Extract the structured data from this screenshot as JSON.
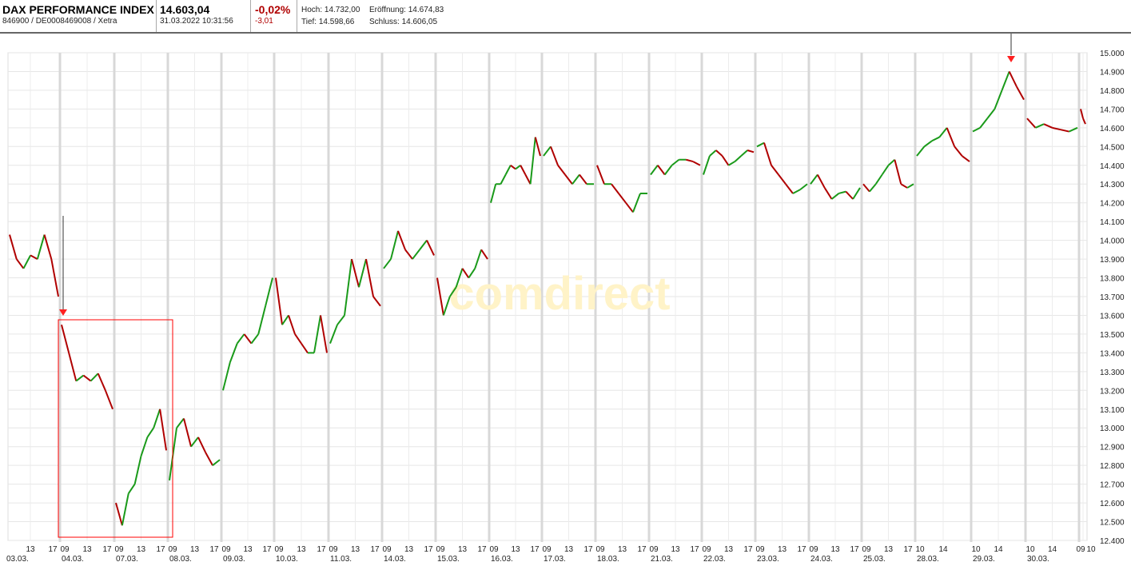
{
  "header": {
    "title": "DAX PERFORMANCE INDEX",
    "ids": "846900 / DE0008469008 / Xetra",
    "price": "14.603,04",
    "datetime": "31.03.2022 10:31:56",
    "change_pct": "-0,02%",
    "change_abs": "-3,01",
    "high": "Hoch: 14.732,00",
    "open": "Eröffnung: 14.674,83",
    "low": "Tief: 14.598,66",
    "close": "Schluss: 14.606,05"
  },
  "colors": {
    "up": "#1a9a1a",
    "down": "#b00000",
    "change": "#b00000",
    "annotation": "#ff0000"
  },
  "watermark": "comdirect",
  "chart_data": {
    "type": "line",
    "style": "intraday candlestick-like line (green up / red down)",
    "ylim": [
      12400,
      15000
    ],
    "y_ticks": [
      "12.400",
      "12.500",
      "12.600",
      "12.700",
      "12.800",
      "12.900",
      "13.000",
      "13.100",
      "13.200",
      "13.300",
      "13.400",
      "13.500",
      "13.600",
      "13.700",
      "13.800",
      "13.900",
      "14.000",
      "14.100",
      "14.200",
      "14.300",
      "14.400",
      "14.500",
      "14.600",
      "14.700",
      "14.800",
      "14.900",
      "15.000"
    ],
    "grid": true,
    "days": [
      {
        "date": "03.03.",
        "ticks": [
          "13",
          "17"
        ],
        "values": [
          14030,
          13900,
          13850,
          13920,
          13900,
          14030,
          13900,
          13700
        ]
      },
      {
        "date": "04.03.",
        "ticks": [
          "09",
          "13",
          "17"
        ],
        "values": [
          13550,
          13400,
          13250,
          13280,
          13250,
          13290,
          13200,
          13100
        ]
      },
      {
        "date": "07.03.",
        "ticks": [
          "09",
          "13",
          "17"
        ],
        "values": [
          12600,
          12480,
          12650,
          12700,
          12850,
          12950,
          13000,
          13100,
          12880
        ]
      },
      {
        "date": "08.03.",
        "ticks": [
          "09",
          "13",
          "17"
        ],
        "values": [
          12720,
          13000,
          13050,
          12900,
          12950,
          12870,
          12800,
          12830
        ]
      },
      {
        "date": "09.03.",
        "ticks": [
          "09",
          "13",
          "17"
        ],
        "values": [
          13200,
          13350,
          13450,
          13500,
          13450,
          13500,
          13650,
          13800
        ]
      },
      {
        "date": "10.03.",
        "ticks": [
          "09",
          "13",
          "17"
        ],
        "values": [
          13800,
          13550,
          13600,
          13500,
          13450,
          13400,
          13400,
          13600,
          13400
        ]
      },
      {
        "date": "11.03.",
        "ticks": [
          "09",
          "13",
          "17"
        ],
        "values": [
          13450,
          13550,
          13600,
          13900,
          13750,
          13900,
          13700,
          13650
        ]
      },
      {
        "date": "14.03.",
        "ticks": [
          "09",
          "13",
          "17"
        ],
        "values": [
          13850,
          13900,
          14050,
          13950,
          13900,
          13950,
          14000,
          13920
        ]
      },
      {
        "date": "15.03.",
        "ticks": [
          "09",
          "13",
          "17"
        ],
        "values": [
          13800,
          13600,
          13700,
          13750,
          13850,
          13800,
          13850,
          13950,
          13900
        ]
      },
      {
        "date": "16.03.",
        "ticks": [
          "09",
          "13",
          "17"
        ],
        "values": [
          14200,
          14300,
          14300,
          14350,
          14400,
          14380,
          14400,
          14350,
          14300,
          14550,
          14450
        ]
      },
      {
        "date": "17.03.",
        "ticks": [
          "09",
          "13",
          "17"
        ],
        "values": [
          14450,
          14500,
          14400,
          14350,
          14300,
          14350,
          14300,
          14300
        ]
      },
      {
        "date": "18.03.",
        "ticks": [
          "09",
          "13",
          "17"
        ],
        "values": [
          14400,
          14300,
          14300,
          14250,
          14200,
          14150,
          14250,
          14250
        ]
      },
      {
        "date": "21.03.",
        "ticks": [
          "09",
          "13",
          "17"
        ],
        "values": [
          14350,
          14400,
          14350,
          14400,
          14430,
          14430,
          14420,
          14400
        ]
      },
      {
        "date": "22.03.",
        "ticks": [
          "09",
          "13",
          "17"
        ],
        "values": [
          14350,
          14450,
          14480,
          14450,
          14400,
          14420,
          14450,
          14480,
          14470
        ]
      },
      {
        "date": "23.03.",
        "ticks": [
          "09",
          "13",
          "17"
        ],
        "values": [
          14500,
          14520,
          14400,
          14350,
          14300,
          14250,
          14270,
          14300
        ]
      },
      {
        "date": "24.03.",
        "ticks": [
          "09",
          "13",
          "17"
        ],
        "values": [
          14300,
          14350,
          14280,
          14220,
          14250,
          14260,
          14220,
          14280
        ]
      },
      {
        "date": "25.03.",
        "ticks": [
          "09",
          "13",
          "17"
        ],
        "values": [
          14300,
          14260,
          14300,
          14350,
          14400,
          14430,
          14300,
          14280,
          14300
        ]
      },
      {
        "date": "28.03.",
        "ticks": [
          "10",
          "14"
        ],
        "values": [
          14450,
          14500,
          14530,
          14550,
          14600,
          14500,
          14450,
          14420
        ]
      },
      {
        "date": "29.03.",
        "ticks": [
          "10",
          "14"
        ],
        "values": [
          14580,
          14600,
          14650,
          14700,
          14800,
          14900,
          14820,
          14750
        ]
      },
      {
        "date": "30.03.",
        "ticks": [
          "10",
          "14"
        ],
        "values": [
          14650,
          14600,
          14620,
          14600,
          14590,
          14580,
          14600
        ]
      },
      {
        "date": "",
        "ticks": [
          "09",
          "10"
        ],
        "values": [
          14700,
          14650,
          14620
        ]
      }
    ]
  }
}
